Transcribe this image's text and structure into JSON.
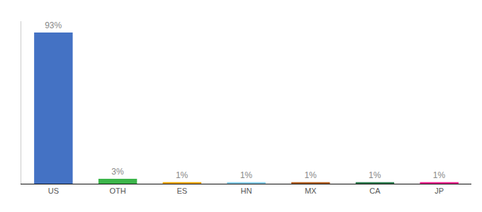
{
  "chart_data": {
    "type": "bar",
    "categories": [
      "US",
      "OTH",
      "ES",
      "HN",
      "MX",
      "CA",
      "JP"
    ],
    "values": [
      93,
      3,
      1,
      1,
      1,
      1,
      1
    ],
    "value_labels": [
      "93%",
      "3%",
      "1%",
      "1%",
      "1%",
      "1%",
      "1%"
    ],
    "colors": [
      "#4472c4",
      "#3cb54a",
      "#f0a500",
      "#87ceeb",
      "#b36020",
      "#2e7d4f",
      "#e91e8c"
    ],
    "ylim": [
      0,
      100
    ],
    "data_labels": true,
    "tick_labels": "x",
    "grid": false
  }
}
